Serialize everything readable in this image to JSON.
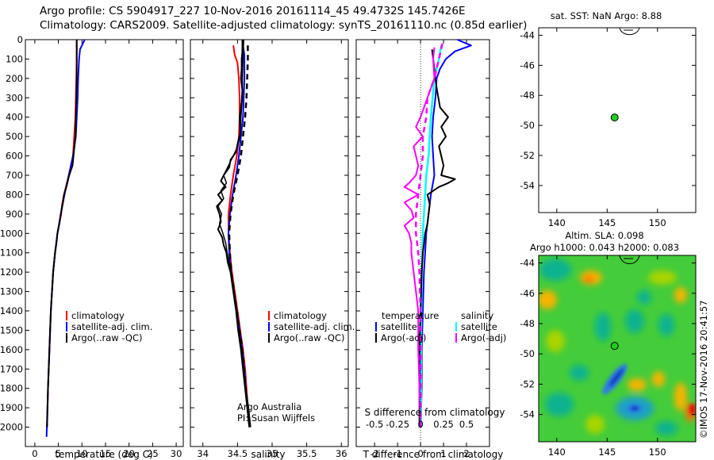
{
  "header": {
    "line1": "Argo profile: CS 5904917_227 10-Nov-2016 20161114_45 49.4732S 145.7426E",
    "line2": "Climatology: CARS2009. Satellite-adjusted climatology: synTS_20161110.nc (0.85d earlier)"
  },
  "credit": "Argo Australia",
  "pi": "PI: Susan Wijffels",
  "watermark": "©IMOS 17-Nov-2016 20:41:57",
  "colors": {
    "climatology": "#ff0000",
    "satellite": "#0000ff",
    "argo": "#000000",
    "cyan": "#00ffff",
    "magenta": "#ff00ff",
    "dot": "#22cc22"
  },
  "chart_data": [
    {
      "type": "line",
      "id": "temperature",
      "xlabel": "temperature (deg C)",
      "xticks": [
        "0",
        "5",
        "10",
        "15",
        "20",
        "25",
        "30"
      ],
      "xlim": [
        -2,
        31.5
      ],
      "ylim": [
        0,
        2100
      ],
      "yticks": [
        "0",
        "100",
        "200",
        "300",
        "400",
        "500",
        "600",
        "700",
        "800",
        "900",
        "1000",
        "1100",
        "1200",
        "1300",
        "1400",
        "1500",
        "1600",
        "1700",
        "1800",
        "1900",
        "2000"
      ],
      "legend": [
        "climatology",
        "satellite-adj. clim.",
        "Argo(..raw -QC)"
      ],
      "series": [
        {
          "key": "climatology",
          "color": "#ff0000",
          "width": 2,
          "depth": [
            0,
            100,
            200,
            400,
            600,
            700,
            800,
            850,
            900,
            1000,
            1100,
            1200,
            1400,
            1600,
            1800,
            2000
          ],
          "values": [
            8.9,
            8.9,
            8.8,
            8.6,
            8.1,
            7.2,
            6.2,
            5.8,
            5.6,
            4.8,
            4.3,
            3.9,
            3.4,
            3.1,
            2.8,
            2.6
          ]
        },
        {
          "key": "satellite",
          "color": "#0000ff",
          "width": 2,
          "depth": [
            0,
            50,
            100,
            200,
            300,
            400,
            500,
            600,
            700,
            800,
            900,
            1000,
            1100,
            1200,
            1400,
            1600,
            1800,
            2050
          ],
          "values": [
            10.6,
            9.6,
            9.4,
            9.2,
            9.1,
            8.9,
            8.7,
            8.1,
            7.2,
            6.3,
            5.5,
            4.8,
            4.3,
            3.9,
            3.4,
            3.1,
            2.8,
            2.5
          ]
        },
        {
          "key": "argo",
          "color": "#000000",
          "width": 2,
          "depth": [
            0,
            100,
            200,
            300,
            400,
            500,
            600,
            650,
            700,
            750,
            800,
            850,
            900,
            950,
            1000,
            1050,
            1100,
            1200,
            1400,
            1600,
            1800,
            2000
          ],
          "values": [
            8.9,
            8.9,
            8.9,
            8.8,
            8.7,
            8.6,
            8.2,
            8.0,
            7.3,
            6.8,
            6.2,
            5.9,
            5.5,
            5.2,
            4.8,
            4.6,
            4.3,
            3.9,
            3.4,
            3.1,
            2.8,
            2.6
          ]
        }
      ]
    },
    {
      "type": "line",
      "id": "salinity",
      "xlabel": "salinity",
      "xticks": [
        "34",
        "34.5",
        "35",
        "35.5",
        "36"
      ],
      "xlim": [
        33.82,
        36.1
      ],
      "ylim": [
        0,
        2100
      ],
      "legend": [
        "climatology",
        "satellite-adj. clim.",
        "Argo(..raw -QC)"
      ],
      "series": [
        {
          "key": "climatology",
          "color": "#ff0000",
          "width": 2,
          "depth": [
            30,
            80,
            120,
            200,
            300,
            400,
            500,
            600,
            700,
            800,
            900,
            1000,
            1100,
            1200,
            1300,
            1400,
            1500,
            1600,
            1700,
            1800,
            1900,
            2000
          ],
          "values": [
            34.44,
            34.46,
            34.5,
            34.52,
            34.53,
            34.53,
            34.52,
            34.49,
            34.44,
            34.4,
            34.37,
            34.37,
            34.39,
            34.42,
            34.46,
            34.5,
            34.54,
            34.58,
            34.61,
            34.63,
            34.65,
            34.68
          ]
        },
        {
          "key": "satellite",
          "color": "#0000ff",
          "width": 2,
          "depth": [
            30,
            80,
            120,
            200,
            300,
            400,
            500,
            600,
            700,
            800,
            900,
            1000,
            1100,
            1200,
            1300,
            1400,
            1500,
            1600,
            1700,
            1800,
            1900,
            2000
          ],
          "values": [
            34.58,
            34.6,
            34.6,
            34.6,
            34.59,
            34.58,
            34.55,
            34.52,
            34.48,
            34.43,
            34.39,
            34.37,
            34.38,
            34.41,
            34.45,
            34.49,
            34.53,
            34.57,
            34.6,
            34.62,
            34.65,
            34.68
          ]
        },
        {
          "key": "argo",
          "color": "#000000",
          "width": 2,
          "depth": [
            0,
            60,
            100,
            150,
            200,
            260,
            320,
            400,
            480,
            540,
            580,
            620,
            660,
            700,
            730,
            760,
            800,
            830,
            860,
            900,
            940,
            980,
            1020,
            1060,
            1100,
            1150,
            1200,
            1300,
            1400,
            1500,
            1600,
            1700,
            1800,
            1900,
            2000
          ],
          "values": [
            34.57,
            34.57,
            34.56,
            34.56,
            34.55,
            34.57,
            34.56,
            34.53,
            34.54,
            34.5,
            34.48,
            34.4,
            34.38,
            34.3,
            34.26,
            34.33,
            34.22,
            34.28,
            34.2,
            34.24,
            34.26,
            34.22,
            34.28,
            34.3,
            34.34,
            34.36,
            34.4,
            34.44,
            34.48,
            34.51,
            34.55,
            34.58,
            34.61,
            34.64,
            34.67
          ]
        },
        {
          "key": "argo-2",
          "color": "#000000",
          "width": 1.5,
          "depth": [
            0,
            100,
            200,
            300,
            400,
            500,
            560,
            600,
            650,
            700,
            740,
            780,
            820,
            860,
            900,
            950,
            1000,
            1050,
            1100,
            1200,
            1300,
            1400,
            1500,
            1600,
            1700,
            1800,
            1900,
            2000
          ],
          "values": [
            34.59,
            34.58,
            34.57,
            34.57,
            34.55,
            34.54,
            34.49,
            34.44,
            34.37,
            34.3,
            34.34,
            34.26,
            34.3,
            34.22,
            34.27,
            34.24,
            34.29,
            34.33,
            34.35,
            34.41,
            34.45,
            34.49,
            34.52,
            34.56,
            34.59,
            34.62,
            34.66,
            34.69
          ]
        },
        {
          "key": "argo-dash",
          "color": "#000000",
          "width": 2.5,
          "dash": "7,5",
          "depth": [
            30,
            100,
            200,
            300,
            400,
            500,
            600,
            700,
            800,
            900,
            1000,
            1100,
            1200,
            1400,
            1600,
            1800,
            2000
          ],
          "values": [
            34.65,
            34.65,
            34.64,
            34.63,
            34.61,
            34.58,
            34.55,
            34.5,
            34.44,
            34.4,
            34.38,
            34.39,
            34.41,
            34.49,
            34.57,
            34.62,
            34.68
          ]
        }
      ]
    },
    {
      "type": "line",
      "id": "difference",
      "xlabel": "T difference from climatology",
      "xlabel2": "S difference from climatology",
      "xticks": [
        "-2",
        "-1",
        "0",
        "1",
        "2"
      ],
      "xticks2": [
        "-0.5",
        "-0.25",
        "0",
        "0.25",
        "0.5"
      ],
      "xlim": [
        -2.8,
        3.0
      ],
      "ylim": [
        0,
        2100
      ],
      "legend_titles": [
        "temperature",
        "salinity"
      ],
      "legend": [
        "satellite",
        "Argo(-adj)",
        "satellite",
        "Argo(-adj)"
      ],
      "series": [
        {
          "key": "T satellite",
          "color": "#0000ff",
          "width": 2,
          "depth": [
            0,
            30,
            60,
            100,
            150,
            200,
            300,
            400,
            500,
            600,
            700,
            800,
            900,
            1000,
            1100,
            1200,
            1400,
            1600,
            1800,
            2000
          ],
          "values": [
            1.6,
            2.2,
            1.5,
            1.1,
            0.85,
            0.7,
            0.65,
            0.55,
            0.5,
            0.55,
            0.6,
            0.45,
            0.35,
            0.25,
            0.2,
            0.15,
            0.1,
            0.05,
            0.05,
            0.0
          ]
        },
        {
          "key": "S satellite",
          "color": "#00ffff",
          "width": 2.5,
          "depth": [
            30,
            100,
            200,
            400,
            600,
            700,
            800,
            900,
            1000,
            1200,
            1400,
            1600,
            1800,
            2000
          ],
          "values": [
            0.9,
            0.8,
            0.6,
            0.45,
            0.35,
            0.25,
            0.2,
            0.15,
            0.1,
            0.05,
            0.03,
            0.02,
            0.02,
            0.02
          ]
        },
        {
          "key": "T Argo",
          "color": "#000000",
          "width": 2,
          "depth": [
            50,
            150,
            250,
            350,
            400,
            450,
            500,
            550,
            600,
            650,
            700,
            720,
            740,
            760,
            800,
            850,
            900,
            950,
            1000,
            1100,
            1200,
            1400,
            1600,
            1800,
            2000
          ],
          "values": [
            0.5,
            0.6,
            0.7,
            0.85,
            1.2,
            0.9,
            1.1,
            0.8,
            0.9,
            1.0,
            0.9,
            1.5,
            1.2,
            0.8,
            0.3,
            0.4,
            0.35,
            0.3,
            0.2,
            0.1,
            0.05,
            0.0,
            -0.05,
            -0.05,
            -0.05
          ]
        },
        {
          "key": "S Argo",
          "color": "#ff00ff",
          "width": 2,
          "depth": [
            40,
            100,
            200,
            300,
            400,
            450,
            500,
            550,
            600,
            650,
            700,
            740,
            760,
            800,
            840,
            880,
            920,
            960,
            1000,
            1050,
            1100,
            1200,
            1300,
            1400,
            1600,
            1800,
            2000
          ],
          "values": [
            0.6,
            0.55,
            0.6,
            0.3,
            0.0,
            -0.2,
            0.1,
            -0.3,
            -0.2,
            -0.1,
            -0.2,
            -0.5,
            -0.7,
            -0.1,
            -0.7,
            -0.4,
            -0.3,
            -0.7,
            -0.5,
            -0.4,
            -0.4,
            -0.3,
            -0.2,
            -0.1,
            -0.1,
            -0.05,
            0.0
          ]
        },
        {
          "key": "S Argo dash",
          "color": "#ff00ff",
          "width": 2.5,
          "dash": "7,5",
          "depth": [
            20,
            100,
            200,
            300,
            400,
            500,
            600,
            700,
            800,
            900,
            1000,
            1100,
            1200,
            1400,
            1600,
            1800,
            2000
          ],
          "values": [
            0.95,
            0.8,
            0.6,
            0.3,
            0.25,
            0.1,
            0.1,
            0.0,
            -0.1,
            -0.2,
            -0.2,
            -0.1,
            -0.05,
            0.0,
            0.0,
            0.0,
            0.0
          ]
        }
      ]
    },
    {
      "type": "scatter",
      "id": "sst-map",
      "title": "sat. SST: NaN Argo: 8.88",
      "xticks": [
        "140",
        "145",
        "150"
      ],
      "yticks": [
        "-44",
        "-46",
        "-48",
        "-50",
        "-52",
        "-54"
      ],
      "xlim": [
        138.2,
        153.8
      ],
      "ylim": [
        -55.8,
        -43.5
      ],
      "points": [
        {
          "lon": 145.7426,
          "lat": -49.4732
        }
      ]
    },
    {
      "type": "heatmap",
      "id": "sla-map",
      "title_line1": "Altim. SLA: 0.098",
      "title_line2": "Argo h1000: 0.043 h2000: 0.083",
      "xticks": [
        "140",
        "145",
        "150"
      ],
      "yticks": [
        "-44",
        "-46",
        "-48",
        "-50",
        "-52",
        "-54"
      ],
      "xlim": [
        138.2,
        153.8
      ],
      "ylim": [
        -55.8,
        -43.5
      ],
      "points": [
        {
          "lon": 145.7426,
          "lat": -49.4732
        }
      ]
    }
  ]
}
